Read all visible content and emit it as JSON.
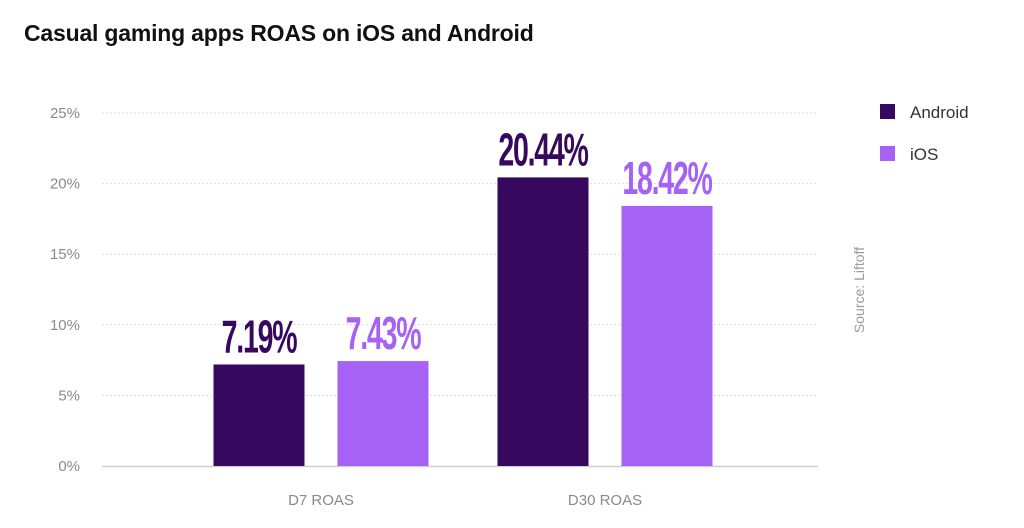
{
  "chart_data": {
    "type": "bar",
    "title": "Casual gaming apps ROAS on iOS and Android",
    "categories": [
      "D7 ROAS",
      "D30 ROAS"
    ],
    "series": [
      {
        "name": "Android",
        "color": "#36095e",
        "values": [
          7.19,
          20.44
        ],
        "labels": [
          "7.19%",
          "20.44%"
        ]
      },
      {
        "name": "iOS",
        "color": "#a562f5",
        "values": [
          7.43,
          18.42
        ],
        "labels": [
          "7.43%",
          "18.42%"
        ]
      }
    ],
    "yticks": [
      0,
      5,
      10,
      15,
      20,
      25
    ],
    "ytick_labels": [
      "0%",
      "5%",
      "10%",
      "15%",
      "20%",
      "25%"
    ],
    "ylim": [
      0,
      25
    ],
    "xlabel": "",
    "ylabel": "",
    "grid": true,
    "legend_position": "top-right",
    "source": "Source: Liftoff"
  }
}
